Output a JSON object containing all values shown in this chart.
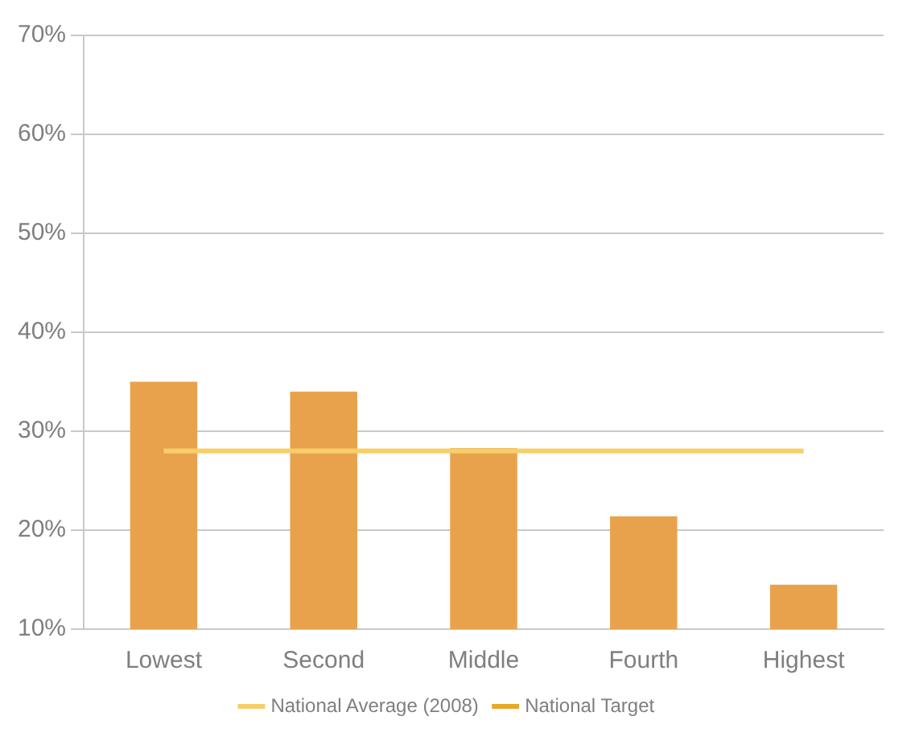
{
  "chart_data": {
    "type": "bar",
    "categories": [
      "Lowest",
      "Second",
      "Middle",
      "Fourth",
      "Highest"
    ],
    "series": [
      {
        "color": "#e9a24c",
        "values": [
          35,
          34,
          28.3,
          21.4,
          14.5
        ]
      },
      {
        "type": "line",
        "name": "National Average (2008)",
        "color": "#f7cf6a",
        "values": [
          28,
          28,
          28,
          28,
          28
        ],
        "line_style": "solid"
      },
      {
        "type": "line",
        "name": "National Target",
        "color": "#e8a828",
        "values": [
          null,
          null,
          null,
          null,
          null
        ],
        "line_style": "dashed"
      }
    ],
    "ylim": [
      10,
      70
    ],
    "yticks": [
      {
        "value": 10,
        "label": "10%"
      },
      {
        "value": 20,
        "label": "20%"
      },
      {
        "value": 30,
        "label": "30%"
      },
      {
        "value": 40,
        "label": "40%"
      },
      {
        "value": 50,
        "label": "50%"
      },
      {
        "value": 60,
        "label": "60%"
      },
      {
        "value": 70,
        "label": "70%"
      }
    ],
    "grid": "y",
    "legend": "bottom",
    "marker": "none"
  }
}
